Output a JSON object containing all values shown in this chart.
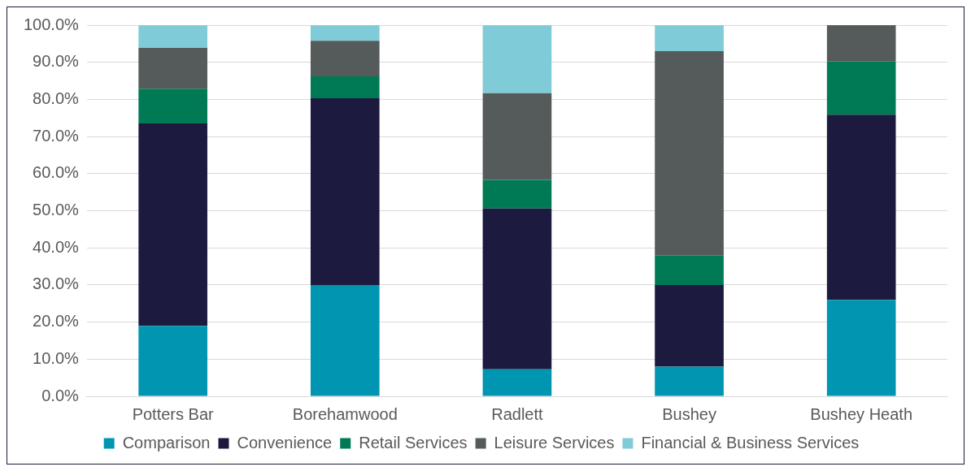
{
  "chart_data": {
    "type": "bar",
    "stacked": true,
    "categories": [
      "Potters Bar",
      "Borehamwood",
      "Radlett",
      "Bushey",
      "Bushey Heath"
    ],
    "series": [
      {
        "name": "Comparison",
        "color": "#0095b0",
        "values": [
          19.0,
          30.0,
          7.3,
          8.0,
          26.0
        ]
      },
      {
        "name": "Convenience",
        "color": "#1c1a3e",
        "values": [
          54.5,
          50.3,
          43.3,
          22.0,
          49.9
        ]
      },
      {
        "name": "Retail Services",
        "color": "#007a55",
        "values": [
          9.4,
          5.9,
          7.7,
          7.9,
          14.3
        ]
      },
      {
        "name": "Leisure Services",
        "color": "#555a5a",
        "values": [
          11.0,
          9.6,
          23.4,
          55.1,
          9.8
        ]
      },
      {
        "name": "Financial & Business Services",
        "color": "#80cbd8",
        "values": [
          6.1,
          4.2,
          18.3,
          7.0,
          0
        ]
      }
    ],
    "ylim": [
      0,
      100
    ],
    "yticks": [
      {
        "value": 0,
        "label": "0.0%"
      },
      {
        "value": 10,
        "label": "10.0%"
      },
      {
        "value": 20,
        "label": "20.0%"
      },
      {
        "value": 30,
        "label": "30.0%"
      },
      {
        "value": 40,
        "label": "40.0%"
      },
      {
        "value": 50,
        "label": "50.0%"
      },
      {
        "value": 60,
        "label": "60.0%"
      },
      {
        "value": 70,
        "label": "70.0%"
      },
      {
        "value": 80,
        "label": "80.0%"
      },
      {
        "value": 90,
        "label": "90.0%"
      },
      {
        "value": 100,
        "label": "100.0%"
      }
    ],
    "grid": "y",
    "legend": "bottom"
  }
}
